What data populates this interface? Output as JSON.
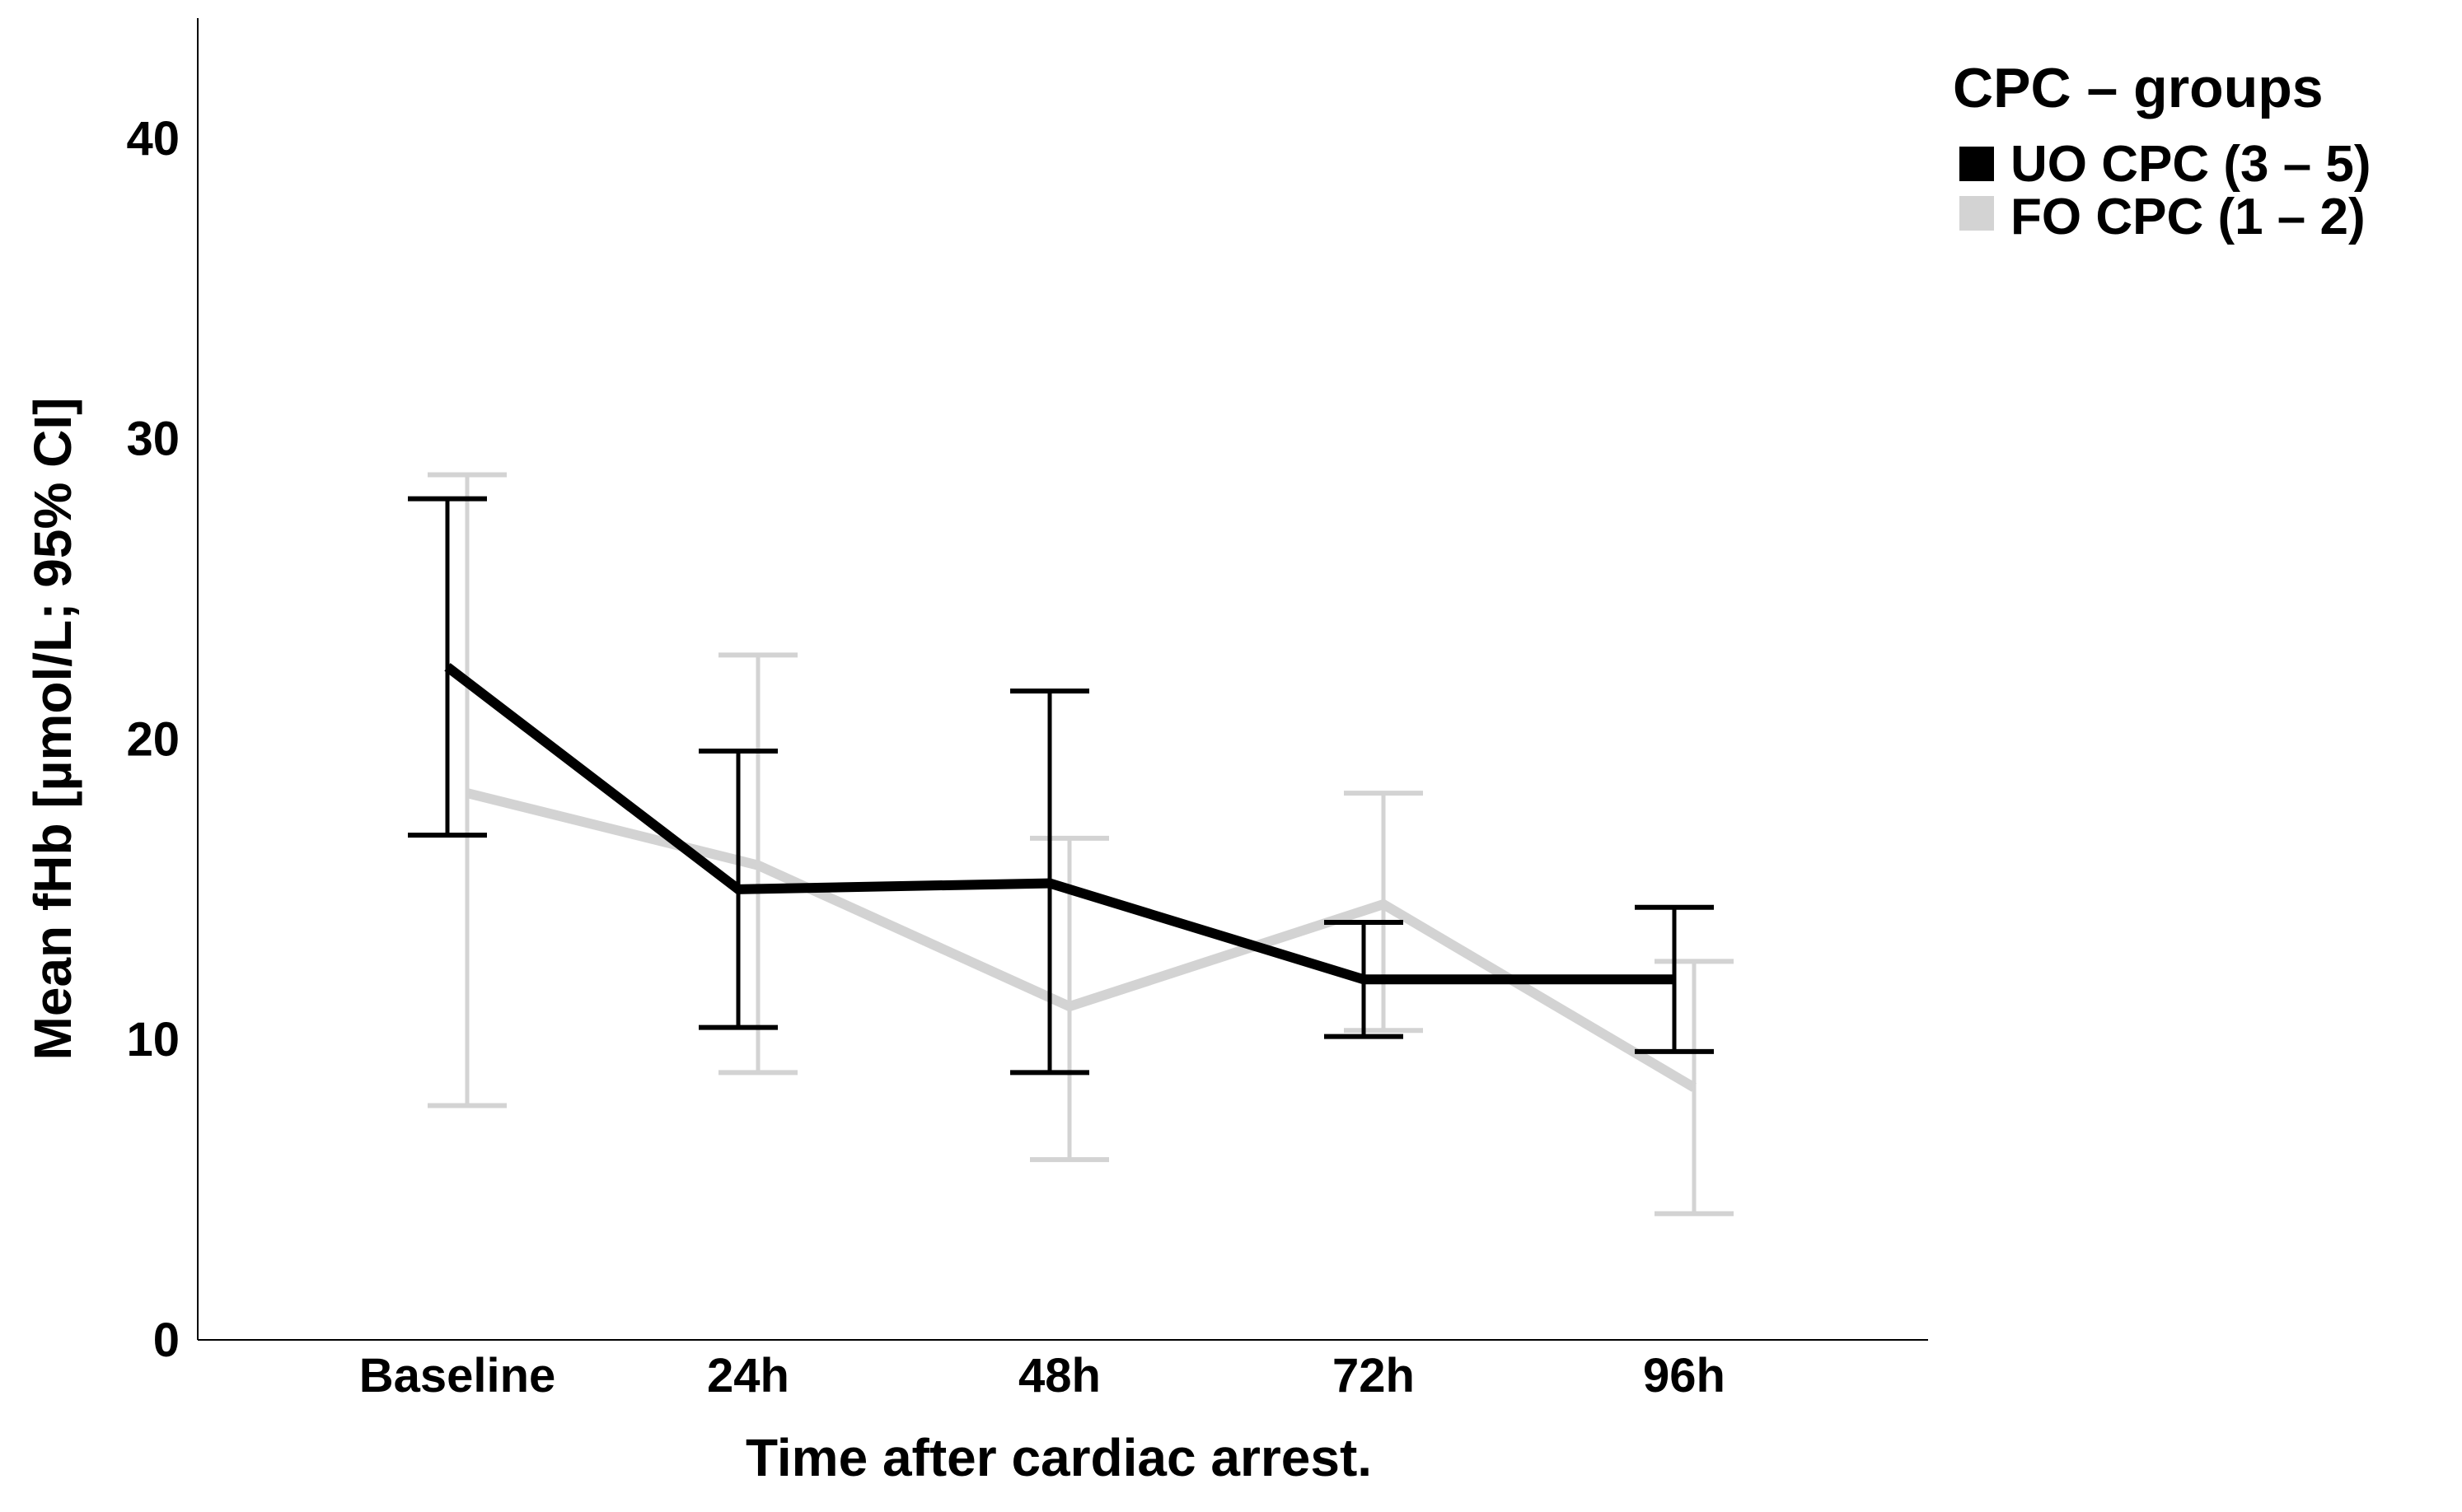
{
  "chart_data": {
    "type": "line",
    "title": "",
    "xlabel": "Time after cardiac arrest.",
    "ylabel": "Mean fHb [µmol/L; 95% CI]",
    "ylim": [
      0,
      44
    ],
    "yticks": [
      0,
      10,
      20,
      30,
      40
    ],
    "categories": [
      "Baseline",
      "24h",
      "48h",
      "72h",
      "96h"
    ],
    "legend": {
      "title": "CPC – groups",
      "position": "top-right"
    },
    "series": [
      {
        "name": "UO CPC (3 – 5)",
        "color": "#000000",
        "values": [
          22.4,
          15.0,
          15.2,
          12.0,
          12.0
        ],
        "ci_lower": [
          16.8,
          10.4,
          8.9,
          10.1,
          9.6
        ],
        "ci_upper": [
          28.0,
          19.6,
          21.6,
          13.9,
          14.4
        ]
      },
      {
        "name": "FO CPC (1 – 2)",
        "color": "#d3d3d3",
        "values": [
          18.2,
          15.8,
          11.1,
          14.5,
          8.4
        ],
        "ci_lower": [
          7.8,
          8.9,
          6.0,
          10.3,
          4.2
        ],
        "ci_upper": [
          28.8,
          22.8,
          16.7,
          18.2,
          12.6
        ]
      }
    ]
  }
}
